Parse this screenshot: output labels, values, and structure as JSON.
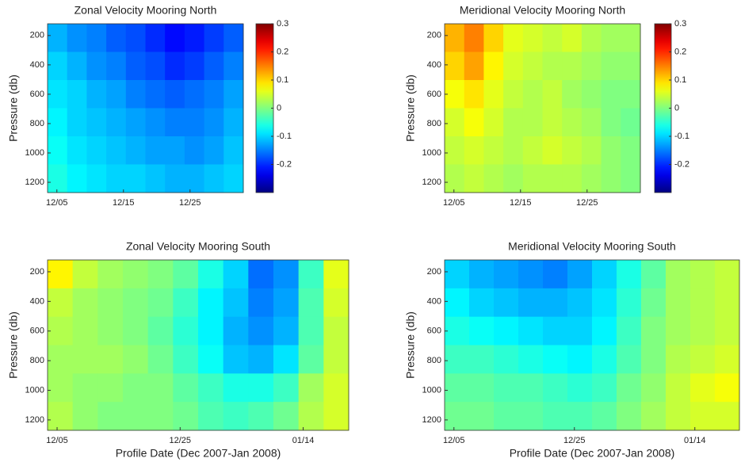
{
  "chart_data": [
    {
      "type": "heatmap",
      "title": "Zonal Velocity Mooring North",
      "ylabel": "Pressure (db)",
      "colormap": "jet",
      "y_inverted": true,
      "xlim": [
        3.6,
        33
      ],
      "ylim": [
        120,
        1270
      ],
      "clim": [
        -0.3,
        0.3
      ],
      "xticks": [
        {
          "value": 5,
          "label": "12/05"
        },
        {
          "value": 15,
          "label": "12/15"
        },
        {
          "value": 25,
          "label": "12/25"
        }
      ],
      "yticks": [
        200,
        400,
        600,
        800,
        1000,
        1200
      ],
      "cticks": [
        0.3,
        0.2,
        0.1,
        0,
        -0.1,
        -0.2
      ],
      "z": [
        [
          -0.12,
          -0.14,
          -0.15,
          -0.17,
          -0.18,
          -0.2,
          -0.22,
          -0.21,
          -0.19,
          -0.17
        ],
        [
          -0.1,
          -0.12,
          -0.14,
          -0.15,
          -0.17,
          -0.18,
          -0.2,
          -0.19,
          -0.17,
          -0.15
        ],
        [
          -0.09,
          -0.1,
          -0.12,
          -0.13,
          -0.15,
          -0.16,
          -0.17,
          -0.16,
          -0.15,
          -0.13
        ],
        [
          -0.08,
          -0.1,
          -0.11,
          -0.12,
          -0.13,
          -0.14,
          -0.15,
          -0.15,
          -0.14,
          -0.12
        ],
        [
          -0.07,
          -0.09,
          -0.1,
          -0.11,
          -0.12,
          -0.13,
          -0.13,
          -0.14,
          -0.13,
          -0.11
        ],
        [
          -0.06,
          -0.08,
          -0.09,
          -0.1,
          -0.1,
          -0.11,
          -0.12,
          -0.12,
          -0.11,
          -0.1
        ]
      ]
    },
    {
      "type": "heatmap",
      "title": "Meridional Velocity Mooring North",
      "ylabel": "Pressure (db)",
      "colormap": "jet",
      "y_inverted": true,
      "xlim": [
        3.6,
        33
      ],
      "ylim": [
        120,
        1270
      ],
      "clim": [
        -0.3,
        0.3
      ],
      "xticks": [
        {
          "value": 5,
          "label": "12/05"
        },
        {
          "value": 15,
          "label": "12/15"
        },
        {
          "value": 25,
          "label": "12/25"
        }
      ],
      "yticks": [
        200,
        400,
        600,
        800,
        1000,
        1200
      ],
      "cticks": [
        0.3,
        0.2,
        0.1,
        0,
        -0.1,
        -0.2
      ],
      "z": [
        [
          0.12,
          0.15,
          0.1,
          0.06,
          0.05,
          0.04,
          0.05,
          0.03,
          0.02,
          0.02
        ],
        [
          0.1,
          0.13,
          0.08,
          0.05,
          0.04,
          0.03,
          0.03,
          0.02,
          0.01,
          0.01
        ],
        [
          0.07,
          0.09,
          0.06,
          0.04,
          0.03,
          0.04,
          0.02,
          0.01,
          0,
          0
        ],
        [
          0.05,
          0.07,
          0.05,
          0.03,
          0.03,
          0.04,
          0.03,
          0.02,
          0,
          -0.01
        ],
        [
          0.04,
          0.05,
          0.04,
          0.03,
          0.04,
          0.05,
          0.04,
          0.03,
          0.01,
          0
        ],
        [
          0.03,
          0.04,
          0.03,
          0.02,
          0.03,
          0.03,
          0.03,
          0.02,
          0.01,
          0
        ]
      ]
    },
    {
      "type": "heatmap",
      "title": "Zonal Velocity Mooring South",
      "ylabel": "Pressure (db)",
      "xlabel": "Profile Date (Dec 2007-Jan 2008)",
      "colormap": "jet",
      "y_inverted": true,
      "xlim": [
        3.45,
        52.4
      ],
      "ylim": [
        120,
        1270
      ],
      "clim": [
        -0.3,
        0.3
      ],
      "xticks": [
        {
          "value": 5,
          "label": "12/05"
        },
        {
          "value": 25,
          "label": "12/25"
        },
        {
          "value": 45,
          "label": "01/14"
        }
      ],
      "yticks": [
        200,
        400,
        600,
        800,
        1000,
        1200
      ],
      "z": [
        [
          0.08,
          0.04,
          0.02,
          0.01,
          0,
          -0.02,
          -0.06,
          -0.1,
          -0.16,
          -0.14,
          -0.04,
          0.06
        ],
        [
          0.04,
          0.02,
          0.01,
          0,
          -0.01,
          -0.04,
          -0.08,
          -0.11,
          -0.15,
          -0.13,
          -0.03,
          0.05
        ],
        [
          0.03,
          0.02,
          0.01,
          0,
          -0.02,
          -0.05,
          -0.08,
          -0.12,
          -0.14,
          -0.12,
          -0.03,
          0.04
        ],
        [
          0.02,
          0.02,
          0.02,
          0.01,
          -0.01,
          -0.04,
          -0.07,
          -0.11,
          -0.12,
          -0.09,
          -0.02,
          0.04
        ],
        [
          0.02,
          0.01,
          0.01,
          0,
          0,
          -0.02,
          -0.04,
          -0.06,
          -0.06,
          -0.04,
          0.02,
          0.05
        ],
        [
          0.03,
          0.01,
          0,
          0,
          0,
          -0.01,
          -0.03,
          -0.04,
          -0.03,
          -0.01,
          0.03,
          0.05
        ]
      ]
    },
    {
      "type": "heatmap",
      "title": "Meridional Velocity Mooring South",
      "ylabel": "Pressure (db)",
      "xlabel": "Profile Date (Dec 2007-Jan 2008)",
      "colormap": "jet",
      "y_inverted": true,
      "xlim": [
        3.45,
        52.4
      ],
      "ylim": [
        120,
        1270
      ],
      "clim": [
        -0.3,
        0.3
      ],
      "xticks": [
        {
          "value": 5,
          "label": "12/05"
        },
        {
          "value": 25,
          "label": "12/25"
        },
        {
          "value": 45,
          "label": "01/14"
        }
      ],
      "yticks": [
        200,
        400,
        600,
        800,
        1000,
        1200
      ],
      "z": [
        [
          -0.1,
          -0.12,
          -0.13,
          -0.14,
          -0.15,
          -0.13,
          -0.1,
          -0.06,
          -0.02,
          0.02,
          0.03,
          0.04
        ],
        [
          -0.08,
          -0.1,
          -0.11,
          -0.12,
          -0.12,
          -0.11,
          -0.09,
          -0.05,
          -0.01,
          0.02,
          0.03,
          0.04
        ],
        [
          -0.06,
          -0.07,
          -0.08,
          -0.09,
          -0.1,
          -0.1,
          -0.08,
          -0.04,
          0,
          0.02,
          0.03,
          0.04
        ],
        [
          -0.04,
          -0.04,
          -0.05,
          -0.06,
          -0.07,
          -0.08,
          -0.06,
          -0.03,
          0,
          0.03,
          0.04,
          0.05
        ],
        [
          -0.02,
          -0.02,
          -0.03,
          -0.03,
          -0.04,
          -0.05,
          -0.04,
          -0.01,
          0.01,
          0.04,
          0.06,
          0.07
        ],
        [
          -0.01,
          -0.01,
          -0.02,
          -0.02,
          -0.03,
          -0.03,
          -0.02,
          0,
          0.02,
          0.04,
          0.05,
          0.05
        ]
      ]
    }
  ]
}
